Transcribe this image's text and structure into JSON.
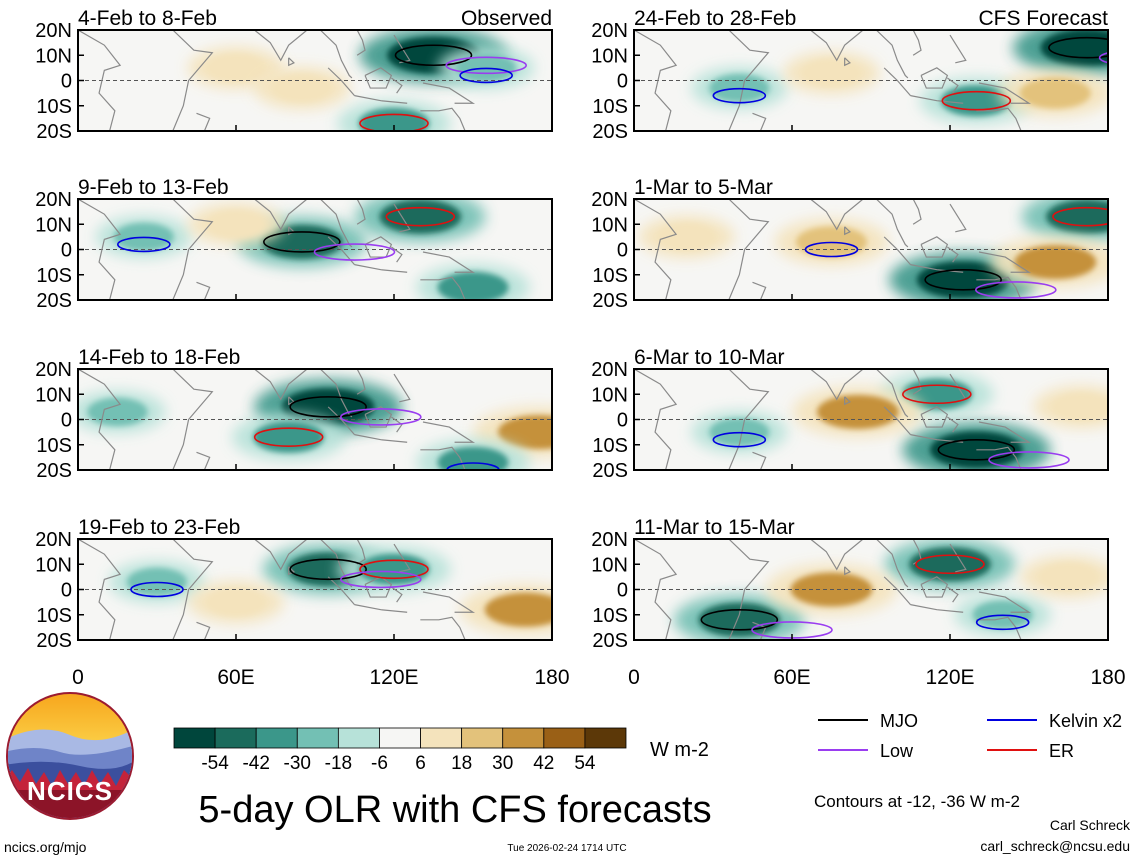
{
  "chart_data": {
    "type": "heatmap",
    "title": "5-day OLR with CFS forecasts",
    "panels_observed_label": "Observed",
    "panels_forecast_label": "CFS Forecast",
    "panels": [
      {
        "period": "4-Feb to 8-Feb",
        "kind": "observed",
        "anomalies": [
          {
            "lon": 135,
            "lat": 10,
            "value": -54
          },
          {
            "lon": 120,
            "lat": -17,
            "value": -30
          },
          {
            "lon": 60,
            "lat": 5,
            "value": 18
          },
          {
            "lon": 155,
            "lat": 5,
            "value": -18
          },
          {
            "lon": 85,
            "lat": -3,
            "value": 18
          }
        ]
      },
      {
        "period": "9-Feb to 13-Feb",
        "kind": "observed",
        "anomalies": [
          {
            "lon": 85,
            "lat": 3,
            "value": -42
          },
          {
            "lon": 130,
            "lat": 13,
            "value": -42
          },
          {
            "lon": 150,
            "lat": -15,
            "value": -30
          },
          {
            "lon": 25,
            "lat": 5,
            "value": -18
          },
          {
            "lon": 60,
            "lat": 10,
            "value": 18
          }
        ]
      },
      {
        "period": "14-Feb to 18-Feb",
        "kind": "observed",
        "anomalies": [
          {
            "lon": 95,
            "lat": 5,
            "value": -54
          },
          {
            "lon": 80,
            "lat": -7,
            "value": -30
          },
          {
            "lon": 175,
            "lat": -5,
            "value": 42
          },
          {
            "lon": 150,
            "lat": -17,
            "value": -30
          },
          {
            "lon": 15,
            "lat": 3,
            "value": -18
          }
        ]
      },
      {
        "period": "19-Feb to 23-Feb",
        "kind": "observed",
        "anomalies": [
          {
            "lon": 95,
            "lat": 8,
            "value": -42
          },
          {
            "lon": 120,
            "lat": 8,
            "value": -30
          },
          {
            "lon": 170,
            "lat": -8,
            "value": 42
          },
          {
            "lon": 30,
            "lat": 3,
            "value": -18
          },
          {
            "lon": 60,
            "lat": -5,
            "value": 18
          }
        ]
      },
      {
        "period": "24-Feb to 28-Feb",
        "kind": "forecast",
        "anomalies": [
          {
            "lon": 172,
            "lat": 13,
            "value": -54
          },
          {
            "lon": 130,
            "lat": -8,
            "value": -30
          },
          {
            "lon": 160,
            "lat": -5,
            "value": 30
          },
          {
            "lon": 40,
            "lat": -3,
            "value": -18
          },
          {
            "lon": 75,
            "lat": 3,
            "value": 18
          }
        ]
      },
      {
        "period": "1-Mar to 5-Mar",
        "kind": "forecast",
        "anomalies": [
          {
            "lon": 125,
            "lat": -12,
            "value": -54
          },
          {
            "lon": 172,
            "lat": 13,
            "value": -42
          },
          {
            "lon": 160,
            "lat": -5,
            "value": 42
          },
          {
            "lon": 75,
            "lat": 3,
            "value": 30
          },
          {
            "lon": 20,
            "lat": 5,
            "value": 18
          }
        ]
      },
      {
        "period": "6-Mar to 10-Mar",
        "kind": "forecast",
        "anomalies": [
          {
            "lon": 130,
            "lat": -12,
            "value": -54
          },
          {
            "lon": 115,
            "lat": 10,
            "value": -30
          },
          {
            "lon": 85,
            "lat": 3,
            "value": 42
          },
          {
            "lon": 40,
            "lat": -5,
            "value": -18
          },
          {
            "lon": 170,
            "lat": 5,
            "value": 18
          }
        ]
      },
      {
        "period": "11-Mar to 15-Mar",
        "kind": "forecast",
        "anomalies": [
          {
            "lon": 40,
            "lat": -12,
            "value": -42
          },
          {
            "lon": 120,
            "lat": 10,
            "value": -42
          },
          {
            "lon": 75,
            "lat": 0,
            "value": 42
          },
          {
            "lon": 140,
            "lat": -10,
            "value": -18
          },
          {
            "lon": 165,
            "lat": 5,
            "value": 18
          }
        ]
      }
    ],
    "lat_ticks": [
      "20N",
      "10N",
      "0",
      "10S",
      "20S"
    ],
    "lon_ticks": [
      "0",
      "60E",
      "120E",
      "180"
    ],
    "xlim": [
      0,
      180
    ],
    "ylim": [
      -20,
      20
    ],
    "colorbar": {
      "labels": [
        "-54",
        "-42",
        "-30",
        "-18",
        "-6",
        "6",
        "18",
        "30",
        "42",
        "54"
      ],
      "colors": [
        "#00463c",
        "#1b6b5c",
        "#3b978a",
        "#73c0b4",
        "#b7e2d9",
        "#f6f6f4",
        "#f4e3bc",
        "#e3c27b",
        "#c5913b",
        "#9a6016",
        "#5c3808"
      ],
      "units": "W m-2"
    },
    "legend": [
      {
        "label": "MJO",
        "color": "#000000"
      },
      {
        "label": "Kelvin x2",
        "color": "#0000e0"
      },
      {
        "label": "Low",
        "color": "#9a3df0"
      },
      {
        "label": "ER",
        "color": "#e01010"
      }
    ],
    "contour_note": "Contours at -12, -36 W m-2"
  },
  "logo_text": "NCICS",
  "credits": {
    "url": "ncics.org/mjo",
    "timestamp": "Tue 2026-02-24 1714 UTC",
    "author": "Carl Schreck",
    "email": "carl_schreck@ncsu.edu"
  }
}
